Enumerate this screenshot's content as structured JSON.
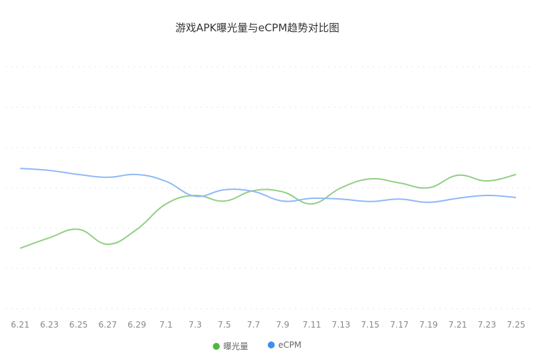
{
  "chart_data": {
    "type": "line",
    "title": "游戏APK曝光量与eCPM趋势对比图",
    "xlabel": "",
    "ylabel": "",
    "categories": [
      "6.21",
      "6.23",
      "6.25",
      "6.27",
      "6.29",
      "7.1",
      "7.3",
      "7.5",
      "7.7",
      "7.9",
      "7.11",
      "7.13",
      "7.15",
      "7.17",
      "7.19",
      "7.21",
      "7.23",
      "7.25"
    ],
    "ylim": [
      0,
      6
    ],
    "y_axis_labels_shown": false,
    "grid": "horizontal dotted",
    "smooth": true,
    "legend_position": "bottom-center",
    "series": [
      {
        "name": "曝光量",
        "color": "#91d084",
        "legend_color": "#4cbb3c",
        "values": [
          1.5,
          1.76,
          1.97,
          1.6,
          1.97,
          2.6,
          2.81,
          2.67,
          2.93,
          2.9,
          2.6,
          3.0,
          3.22,
          3.12,
          3.0,
          3.31,
          3.17,
          3.33
        ]
      },
      {
        "name": "eCPM",
        "color": "#8fb9f7",
        "legend_color": "#3d8ef0",
        "values": [
          3.48,
          3.43,
          3.33,
          3.26,
          3.33,
          3.16,
          2.79,
          2.95,
          2.91,
          2.67,
          2.74,
          2.72,
          2.66,
          2.72,
          2.64,
          2.74,
          2.81,
          2.76
        ]
      }
    ]
  }
}
